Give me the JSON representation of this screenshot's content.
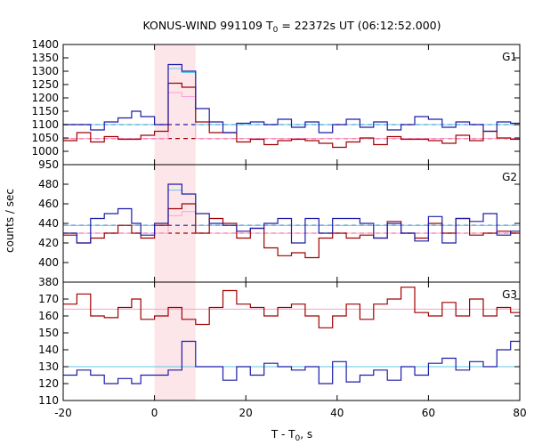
{
  "chart_data": {
    "type": "line",
    "title_main": "KONUS-WIND 991109 T",
    "title_sub": "0",
    "title_rest": " = 22372s UT (06:12:52.000)",
    "xlabel_main": "T - T",
    "xlabel_sub": "0",
    "xlabel_rest": ", s",
    "ylabel": "counts / sec",
    "xlim": [
      -20,
      80
    ],
    "xticks": [
      "-20",
      "0",
      "20",
      "40",
      "60",
      "80"
    ],
    "highlight_interval": [
      0,
      9
    ],
    "colors": {
      "red": "#a00000",
      "blue": "#1c1ca8",
      "pink": "#ff9fd0",
      "cyan": "#60c8e8",
      "highlight": "#fde6ea"
    },
    "bin_edges": [
      -20,
      -17,
      -14,
      -11,
      -8,
      -5,
      -3,
      0,
      3,
      6,
      9,
      12,
      15,
      18,
      21,
      24,
      27,
      30,
      33,
      36,
      39,
      42,
      45,
      48,
      51,
      54,
      57,
      60,
      63,
      66,
      69,
      72,
      75,
      78,
      80
    ],
    "panels": [
      {
        "label": "G1",
        "ylim": [
          950,
          1400
        ],
        "yticks": [
          950,
          1000,
          1050,
          1100,
          1150,
          1200,
          1250,
          1300,
          1350,
          1400
        ],
        "series": [
          {
            "color": "red",
            "values": [
              1040,
              1070,
              1035,
              1055,
              1045,
              1045,
              1060,
              1075,
              1255,
              1240,
              1110,
              1070,
              1070,
              1035,
              1045,
              1025,
              1040,
              1045,
              1040,
              1030,
              1015,
              1035,
              1050,
              1025,
              1055,
              1045,
              1045,
              1040,
              1030,
              1060,
              1040,
              1075,
              1050,
              1045
            ]
          },
          {
            "color": "blue",
            "values": [
              1100,
              1100,
              1080,
              1110,
              1125,
              1150,
              1130,
              1100,
              1325,
              1300,
              1160,
              1110,
              1070,
              1105,
              1110,
              1100,
              1120,
              1090,
              1110,
              1070,
              1100,
              1120,
              1090,
              1110,
              1080,
              1100,
              1130,
              1120,
              1090,
              1110,
              1100,
              1075,
              1110,
              1105
            ]
          },
          {
            "color": "cyan",
            "values": [
              1100,
              1100,
              1100,
              1100,
              1100,
              1100,
              1100,
              1100,
              1310,
              1295,
              1100,
              1100,
              1100,
              1100,
              1100,
              1100,
              1100,
              1100,
              1100,
              1100,
              1100,
              1100,
              1100,
              1100,
              1100,
              1100,
              1100,
              1100,
              1100,
              1100,
              1100,
              1100,
              1100,
              1100
            ]
          },
          {
            "color": "pink",
            "values": [
              1048,
              1048,
              1048,
              1048,
              1048,
              1048,
              1048,
              1048,
              1220,
              1205,
              1048,
              1048,
              1048,
              1048,
              1048,
              1048,
              1048,
              1048,
              1048,
              1048,
              1048,
              1048,
              1048,
              1048,
              1048,
              1048,
              1048,
              1048,
              1048,
              1048,
              1048,
              1048,
              1048,
              1048
            ]
          }
        ],
        "background_lines": [
          {
            "color": "blue",
            "value": 1100,
            "dashed": true
          },
          {
            "color": "red",
            "value": 1048,
            "dashed": true
          }
        ]
      },
      {
        "label": "G2",
        "ylim": [
          380,
          500
        ],
        "yticks": [
          380,
          400,
          420,
          440,
          460,
          480
        ],
        "series": [
          {
            "color": "red",
            "values": [
              428,
              420,
              425,
              430,
              438,
              430,
              425,
              438,
              455,
              460,
              430,
              445,
              440,
              425,
              435,
              415,
              407,
              410,
              405,
              425,
              430,
              425,
              428,
              425,
              442,
              430,
              425,
              440,
              430,
              445,
              428,
              430,
              432,
              430
            ]
          },
          {
            "color": "blue",
            "values": [
              430,
              420,
              445,
              450,
              455,
              440,
              428,
              440,
              480,
              470,
              450,
              440,
              438,
              432,
              435,
              440,
              445,
              420,
              445,
              430,
              445,
              445,
              440,
              425,
              440,
              430,
              422,
              447,
              420,
              445,
              442,
              450,
              428,
              432
            ]
          },
          {
            "color": "cyan",
            "values": [
              438,
              438,
              438,
              438,
              438,
              438,
              438,
              438,
              474,
              470,
              438,
              438,
              438,
              438,
              438,
              438,
              438,
              438,
              438,
              438,
              438,
              438,
              438,
              438,
              438,
              438,
              438,
              438,
              438,
              438,
              438,
              438,
              438,
              438
            ]
          },
          {
            "color": "pink",
            "values": [
              430,
              430,
              430,
              430,
              430,
              430,
              430,
              430,
              448,
              452,
              430,
              430,
              430,
              430,
              430,
              430,
              430,
              430,
              430,
              430,
              430,
              430,
              430,
              430,
              430,
              430,
              430,
              430,
              430,
              430,
              430,
              430,
              430,
              430
            ]
          }
        ],
        "background_lines": [
          {
            "color": "blue",
            "value": 438,
            "dashed": true
          },
          {
            "color": "red",
            "value": 430,
            "dashed": true
          }
        ]
      },
      {
        "label": "G3",
        "ylim": [
          110,
          180
        ],
        "yticks": [
          110,
          120,
          130,
          140,
          150,
          160,
          170
        ],
        "series": [
          {
            "color": "red",
            "values": [
              167,
              173,
              160,
              159,
              165,
              170,
              158,
              160,
              165,
              158,
              155,
              165,
              175,
              167,
              165,
              160,
              165,
              167,
              160,
              153,
              160,
              167,
              158,
              167,
              170,
              177,
              162,
              160,
              168,
              160,
              170,
              160,
              165,
              162
            ]
          },
          {
            "color": "blue",
            "values": [
              125,
              128,
              125,
              120,
              123,
              120,
              125,
              125,
              128,
              145,
              130,
              130,
              122,
              130,
              125,
              132,
              130,
              128,
              130,
              120,
              133,
              121,
              125,
              128,
              122,
              130,
              125,
              132,
              135,
              128,
              133,
              130,
              140,
              145
            ]
          },
          {
            "color": "cyan",
            "values": [
              130,
              130,
              130,
              130,
              130,
              130,
              130,
              130,
              130,
              130,
              130,
              130,
              130,
              130,
              130,
              130,
              130,
              130,
              130,
              130,
              130,
              130,
              130,
              130,
              130,
              130,
              130,
              130,
              130,
              130,
              130,
              130,
              130,
              130
            ]
          },
          {
            "color": "pink",
            "values": [
              164,
              164,
              164,
              164,
              164,
              164,
              164,
              164,
              164,
              164,
              164,
              164,
              164,
              164,
              164,
              164,
              164,
              164,
              164,
              164,
              164,
              164,
              164,
              164,
              164,
              164,
              164,
              164,
              164,
              164,
              164,
              164,
              164,
              164
            ]
          }
        ],
        "background_lines": []
      }
    ]
  }
}
